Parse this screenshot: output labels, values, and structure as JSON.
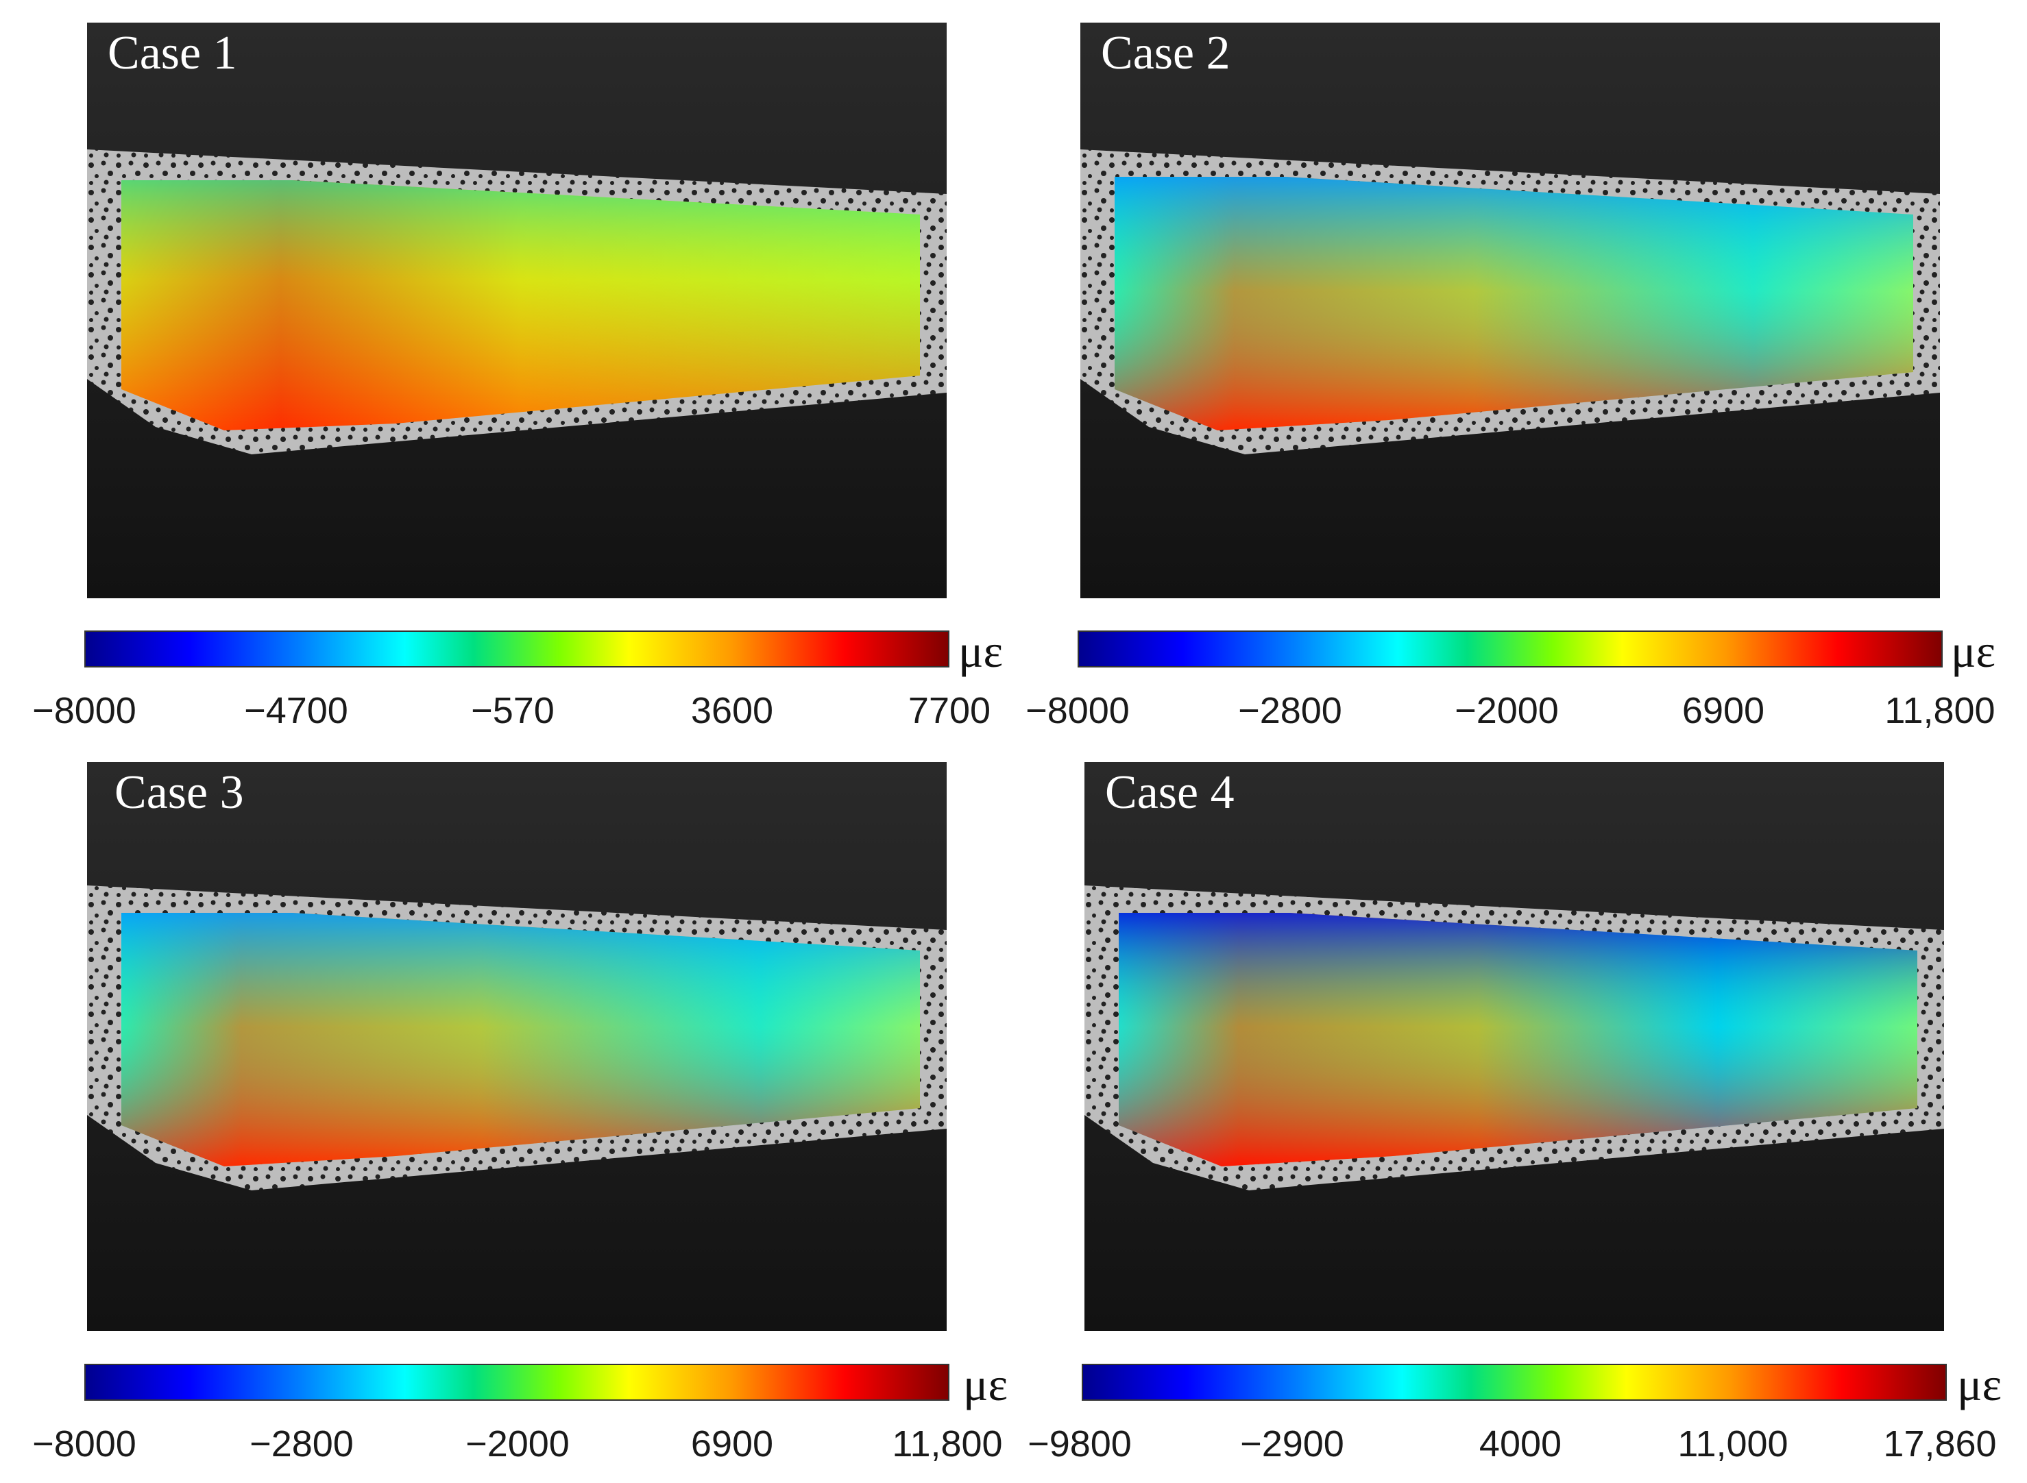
{
  "unit": "με",
  "panels": [
    {
      "label": "Case 1",
      "ticks": [
        "−8000",
        "−4700",
        "−570",
        "3600",
        "7700"
      ]
    },
    {
      "label": "Case 2",
      "ticks": [
        "−8000",
        "−2800",
        "−2000",
        "6900",
        "11,800"
      ]
    },
    {
      "label": "Case 3",
      "ticks": [
        "−8000",
        "−2800",
        "−2000",
        "6900",
        "11,800"
      ]
    },
    {
      "label": "Case 4",
      "ticks": [
        "−9800",
        "−2900",
        "4000",
        "11,000",
        "17,860"
      ]
    }
  ]
}
